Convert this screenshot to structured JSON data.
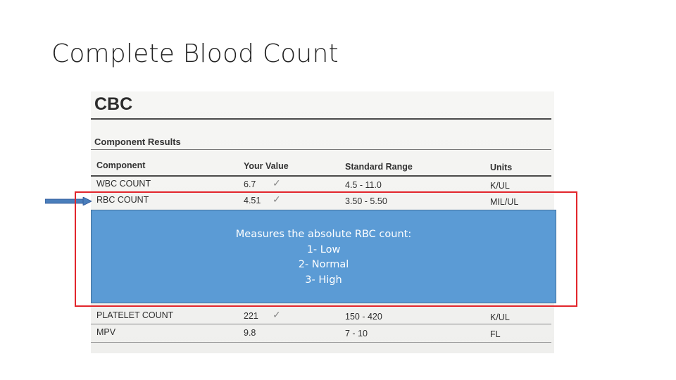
{
  "slide": {
    "title": "Complete Blood Count"
  },
  "report": {
    "title": "CBC",
    "section": "Component Results",
    "headers": {
      "component": "Component",
      "value": "Your Value",
      "range": "Standard Range",
      "units": "Units"
    },
    "rows": [
      {
        "component": "WBC COUNT",
        "value": "6.7",
        "range": "4.5 - 11.0",
        "units": "K/UL"
      },
      {
        "component": "RBC COUNT",
        "value": "4.51",
        "range": "3.50 - 5.50",
        "units": "MIL/UL"
      },
      {
        "component": "PLATELET COUNT",
        "value": "221",
        "range": "150 - 420",
        "units": "K/UL"
      },
      {
        "component": "MPV",
        "value": "9.8",
        "range": "7 - 10",
        "units": "FL"
      }
    ],
    "check_mark": "✓"
  },
  "callout": {
    "lines": [
      "Measures the absolute RBC count:",
      "1- Low",
      "2- Normal",
      "3- High"
    ]
  },
  "colors": {
    "arrow": "#4a7ebb",
    "frame": "#e2262c",
    "callout_fill": "#5b9bd5"
  }
}
